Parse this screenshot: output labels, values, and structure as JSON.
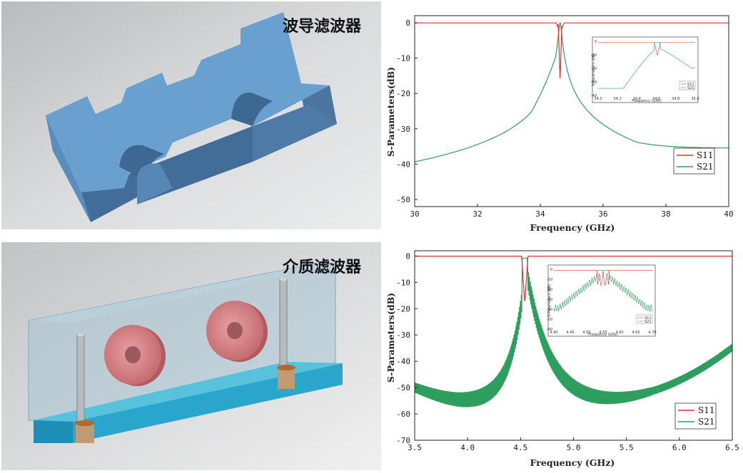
{
  "top_render": {
    "title": "波导滤波器"
  },
  "bottom_render": {
    "title": "介质滤波器"
  },
  "chart_data": [
    {
      "type": "line",
      "xlabel": "Frequency (GHz)",
      "ylabel": "S-Parameters(dB)",
      "xlim": [
        30,
        40
      ],
      "ylim": [
        -52,
        2
      ],
      "xticks": [
        "30",
        "32",
        "34",
        "36",
        "38",
        "40"
      ],
      "yticks": [
        "0",
        "-10",
        "-20",
        "-30",
        "-40",
        "-50"
      ],
      "center": 34.63,
      "legend": "bottom-right",
      "series": [
        {
          "name": "S11",
          "color": "#e03030"
        },
        {
          "name": "S21",
          "color": "#2e9e5e"
        }
      ],
      "inset": {
        "xlabel": "Frequency (GHz)",
        "ylabel": "S-Parameters (dB)",
        "xticks": [
          "34.0",
          "34.2",
          "34.4",
          "34.6",
          "34.8",
          "35.0"
        ],
        "yticks": [
          "0",
          "-10",
          "-20",
          "-30",
          "-40"
        ],
        "legend": [
          "S11",
          "S21"
        ]
      }
    },
    {
      "type": "line",
      "xlabel": "Frequency (GHz)",
      "ylabel": "S-Parameters(dB)",
      "xlim": [
        3.5,
        6.5
      ],
      "ylim": [
        -70,
        2
      ],
      "xticks": [
        "3.5",
        "4.0",
        "4.5",
        "5.0",
        "5.5",
        "6.0",
        "6.5"
      ],
      "yticks": [
        "0",
        "-10",
        "-20",
        "-30",
        "-40",
        "-50",
        "-60",
        "-70"
      ],
      "center": 4.54,
      "legend": "bottom-right",
      "series": [
        {
          "name": "S11",
          "color": "#e03030"
        },
        {
          "name": "S21",
          "color": "#2e9e5e"
        }
      ],
      "inset": {
        "xlabel": "Frequency (GHz)",
        "ylabel": "S-Parameters (dB)",
        "xticks": [
          "4.40",
          "4.45",
          "4.50",
          "4.55",
          "4.60",
          "4.65",
          "4.70"
        ],
        "yticks": [
          "0",
          "-10",
          "-20",
          "-30",
          "-40",
          "-50",
          "-60"
        ],
        "legend": [
          "S11",
          "S21"
        ]
      }
    }
  ]
}
